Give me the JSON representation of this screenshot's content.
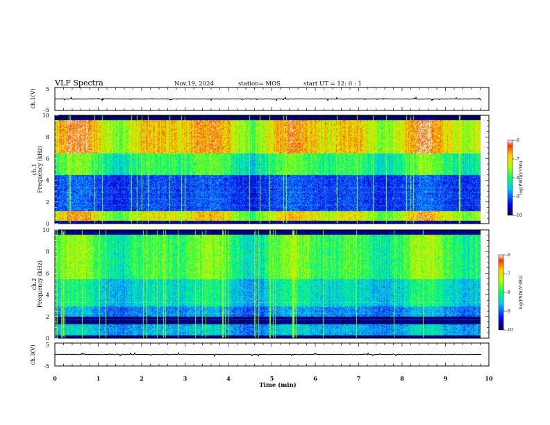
{
  "header": {
    "title": "VLF Spectra",
    "date": "Nov.19, 2024",
    "station": "station= MOS",
    "start_ut": "start  UT =   12: 0  : 1"
  },
  "colors": {
    "spectrogram_scale": [
      "#00003c",
      "#0000ff",
      "#00c8ff",
      "#00ff64",
      "#b4ff00",
      "#ffd200",
      "#ff3200",
      "#ffffff"
    ],
    "trace": "#000000"
  },
  "chart_data": [
    {
      "type": "line",
      "panel": "ch1-waveform",
      "ylabel": "ch.1(V)",
      "ylim": [
        -5,
        5
      ],
      "yticks": [
        "5",
        "-5"
      ],
      "xlim": [
        0,
        10
      ],
      "trace_level": 0
    },
    {
      "type": "heatmap",
      "panel": "ch1-spectrogram",
      "ylabel": "ch.1 Frequency (kHz)",
      "ylim": [
        0,
        10
      ],
      "yticks": [
        "0",
        "2",
        "4",
        "6",
        "8",
        "10"
      ],
      "xlim": [
        0,
        10
      ],
      "data_end_min": 9.8,
      "colorbar": {
        "label": "log(PSD)(V²/Hz)",
        "range": [
          -10,
          -6
        ],
        "ticks": [
          "-6",
          "-7",
          "-8",
          "-9",
          "-10"
        ]
      }
    },
    {
      "type": "heatmap",
      "panel": "ch2-spectrogram",
      "ylabel": "ch.2 Frequency (kHz)",
      "ylim": [
        0,
        10
      ],
      "yticks": [
        "0",
        "2",
        "4",
        "6",
        "8",
        "10"
      ],
      "xlim": [
        0,
        10
      ],
      "data_end_min": 9.8,
      "colorbar": {
        "label": "log(PSD)(V²/Hz)",
        "range": [
          -10,
          -6
        ],
        "ticks": [
          "-6",
          "-7",
          "-8",
          "-9",
          "-10"
        ]
      }
    },
    {
      "type": "line",
      "panel": "ch3-waveform",
      "ylabel": "ch.3(V)",
      "ylim": [
        -5,
        5
      ],
      "yticks": [
        "5",
        "-5"
      ],
      "xlim": [
        0,
        10
      ],
      "xlabel": "Time  (min)",
      "xticks": [
        "0",
        "1",
        "2",
        "3",
        "4",
        "5",
        "6",
        "7",
        "8",
        "9",
        "10"
      ],
      "trace_level": 0
    }
  ]
}
